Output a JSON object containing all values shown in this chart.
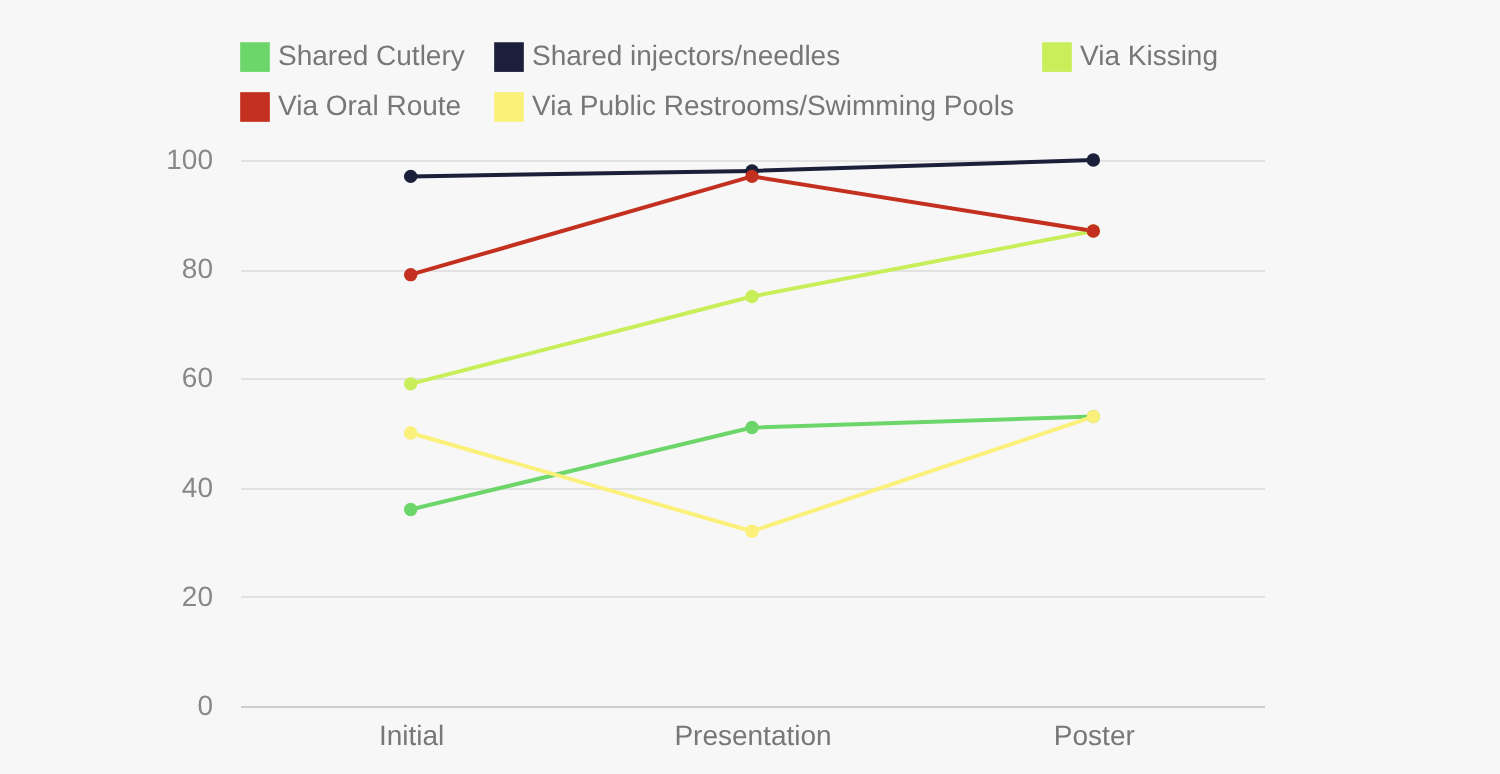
{
  "chart_data": {
    "type": "line",
    "categories": [
      "Initial",
      "Presentation",
      "Poster"
    ],
    "series": [
      {
        "name": "Shared Cutlery",
        "color": "#6cd66a",
        "values": [
          36,
          51,
          53
        ]
      },
      {
        "name": "Shared injectors/needles",
        "color": "#1c1f3a",
        "values": [
          97,
          98,
          100
        ]
      },
      {
        "name": "Via Kissing",
        "color": "#c8ef5a",
        "values": [
          59,
          75,
          87
        ]
      },
      {
        "name": "Via Oral Route",
        "color": "#c3301f",
        "values": [
          79,
          97,
          87
        ]
      },
      {
        "name": "Via Public Restrooms/Swimming Pools",
        "color": "#fbf07a",
        "values": [
          50,
          32,
          53
        ]
      }
    ],
    "ylim": [
      0,
      100
    ],
    "yticks": [
      0,
      20,
      40,
      60,
      80,
      100
    ],
    "grid": "y",
    "legend": "top",
    "marker": "circle",
    "line_style": "solid"
  }
}
